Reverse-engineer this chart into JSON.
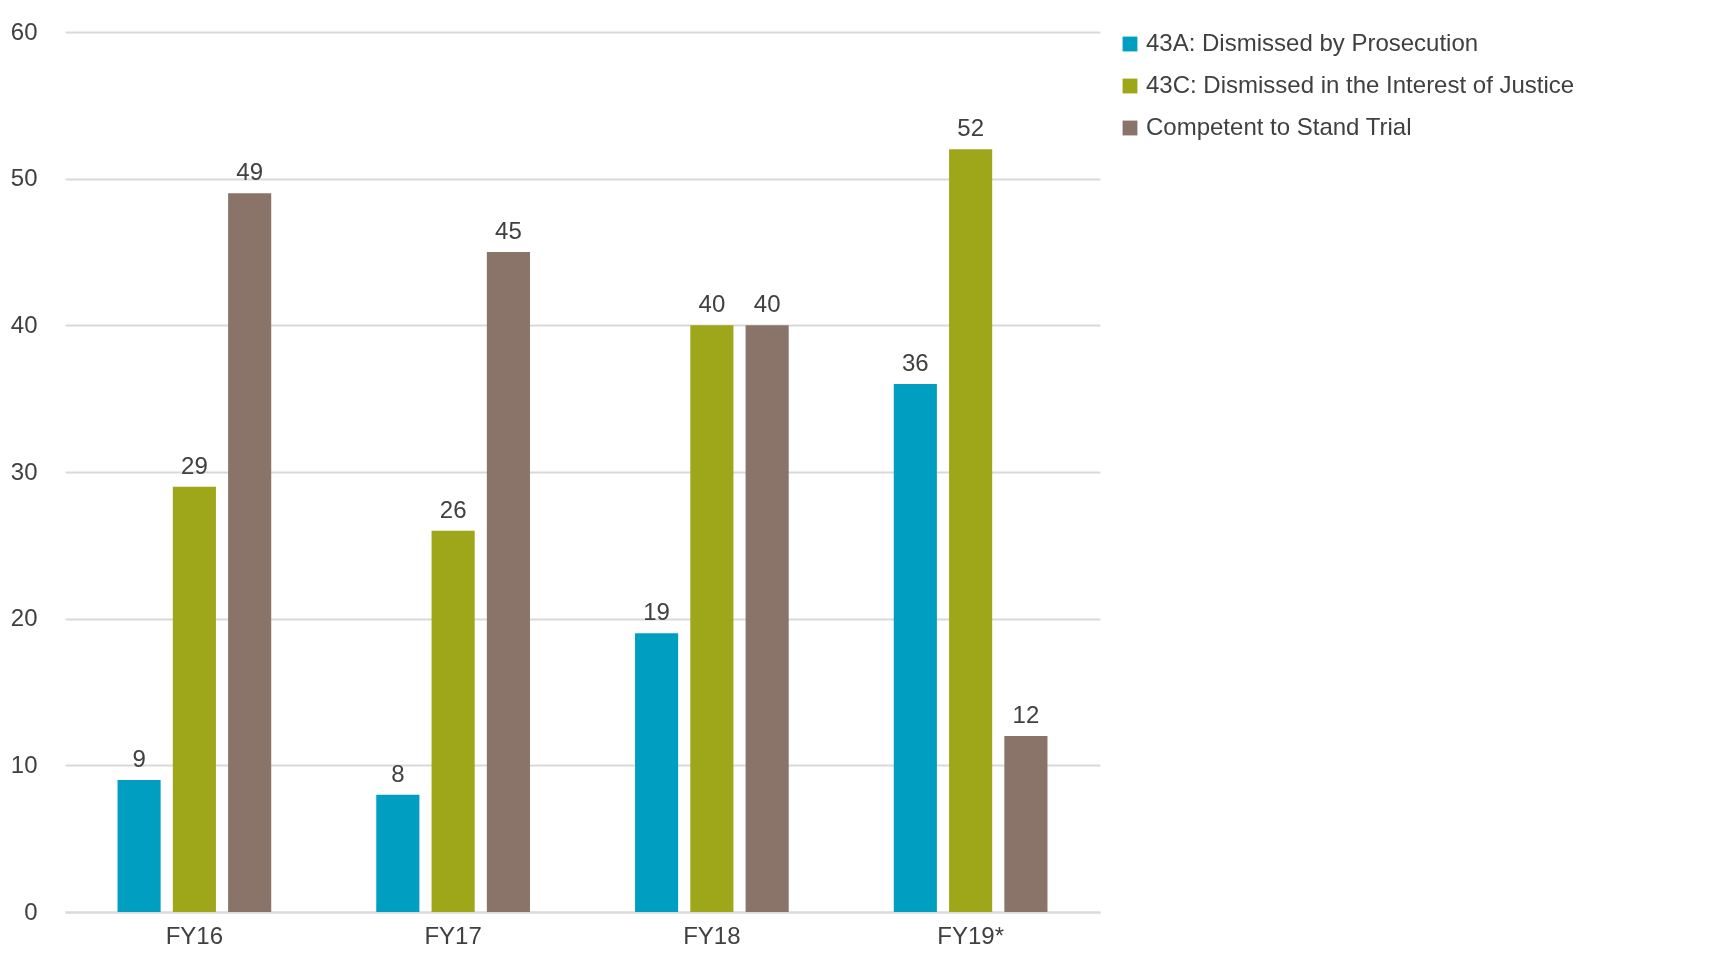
{
  "chart_data": {
    "type": "bar",
    "categories": [
      "FY16",
      "FY17",
      "FY18",
      "FY19*"
    ],
    "series": [
      {
        "name": "43A: Dismissed by Prosecution",
        "color": "#009fc2",
        "values": [
          9,
          8,
          19,
          36
        ]
      },
      {
        "name": "43C: Dismissed in the Interest of Justice",
        "color": "#9ea619",
        "values": [
          29,
          26,
          40,
          52
        ]
      },
      {
        "name": "Competent to Stand Trial",
        "color": "#8a7469",
        "values": [
          49,
          45,
          40,
          12
        ]
      }
    ],
    "ylim": [
      0,
      60
    ],
    "yticks": [
      0,
      10,
      20,
      30,
      40,
      50,
      60
    ],
    "grid": "y",
    "legend": "right",
    "data_labels": true
  }
}
